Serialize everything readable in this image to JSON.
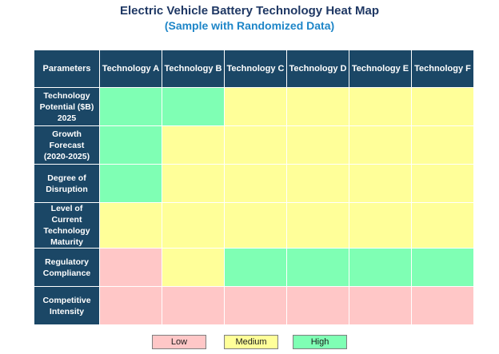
{
  "chart_data": {
    "type": "heatmap",
    "title": "Electric Vehicle Battery Technology Heat Map",
    "subtitle": "(Sample with Randomized Data)",
    "corner_label": "Parameters",
    "columns": [
      "Technology A",
      "Technology B",
      "Technology C",
      "Technology D",
      "Technology E",
      "Technology F"
    ],
    "rows": [
      "Technology Potential ($B) 2025",
      "Growth Forecast (2020-2025)",
      "Degree of Disruption",
      "Level of Current Technology Maturity",
      "Regulatory Compliance",
      "Competitive Intensity"
    ],
    "values": [
      [
        "High",
        "High",
        "Medium",
        "Medium",
        "Medium",
        "Medium"
      ],
      [
        "High",
        "Medium",
        "Medium",
        "Medium",
        "Medium",
        "Medium"
      ],
      [
        "High",
        "Medium",
        "Medium",
        "Medium",
        "Medium",
        "Medium"
      ],
      [
        "Medium",
        "Medium",
        "Medium",
        "Medium",
        "Medium",
        "Medium"
      ],
      [
        "Low",
        "Medium",
        "High",
        "High",
        "High",
        "High"
      ],
      [
        "Low",
        "Low",
        "Low",
        "Low",
        "Low",
        "Low"
      ]
    ],
    "legend": [
      {
        "label": "Low",
        "color": "#FFC7C7"
      },
      {
        "label": "Medium",
        "color": "#FFFF99"
      },
      {
        "label": "High",
        "color": "#7FFFB4"
      }
    ]
  }
}
